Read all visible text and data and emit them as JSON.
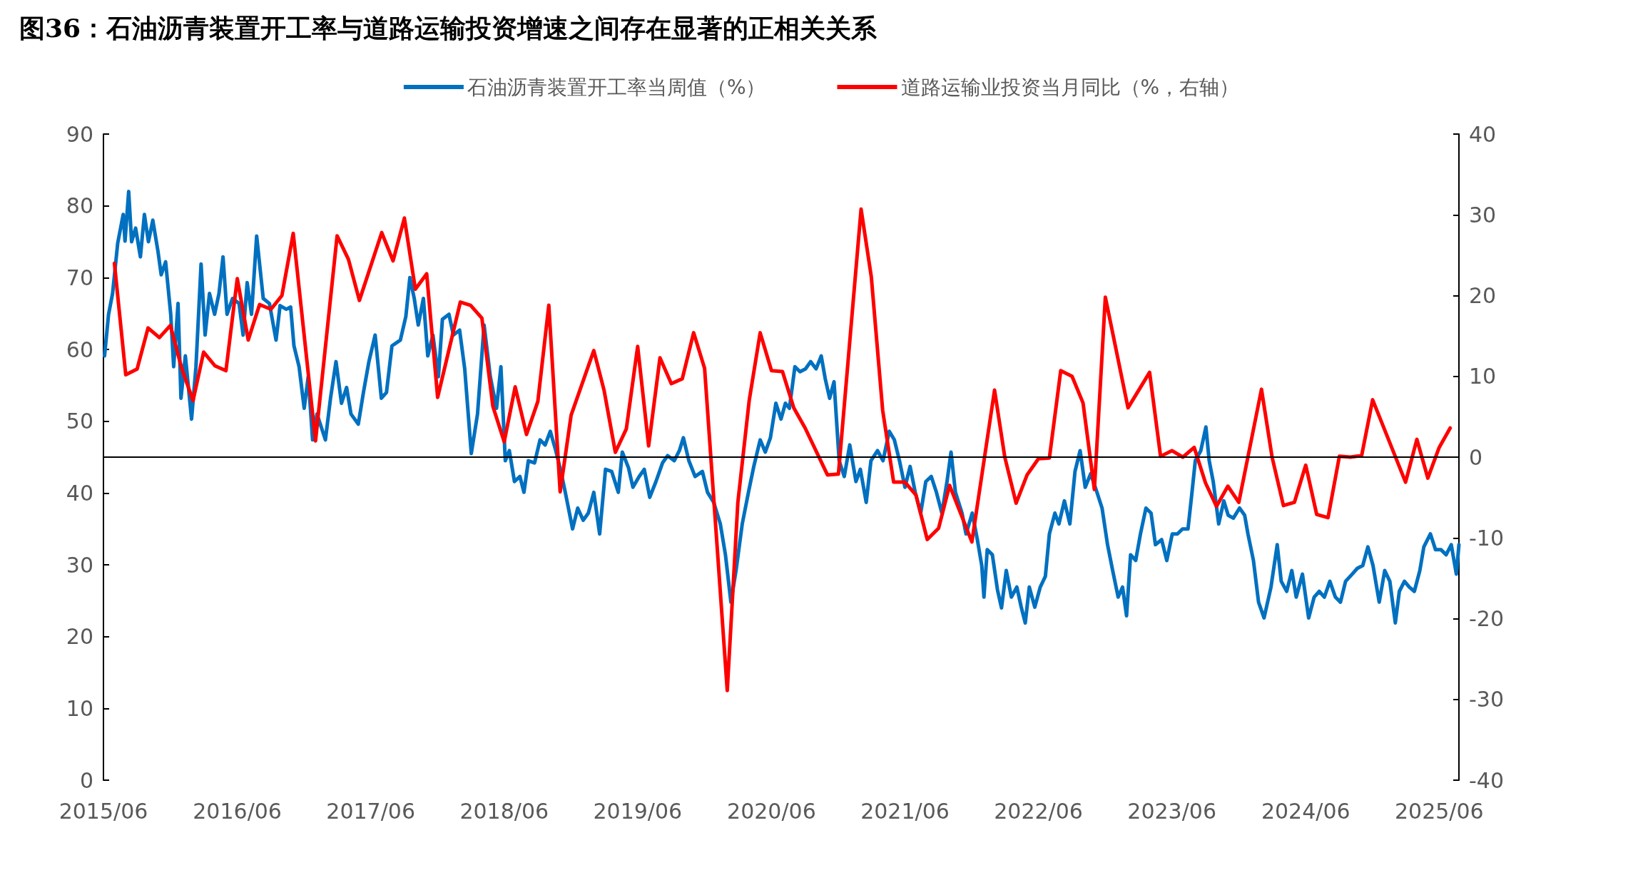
{
  "chart_data": {
    "type": "line",
    "title": "图36：石油沥青装置开工率与道路运输投资增速之间存在显著的正相关关系",
    "xlim": [
      "2015-06-01",
      "2025-07-25"
    ],
    "xticks": [
      {
        "value": "2015-06-01",
        "label": "2015/06"
      },
      {
        "value": "2016-06-01",
        "label": "2016/06"
      },
      {
        "value": "2017-06-01",
        "label": "2017/06"
      },
      {
        "value": "2018-06-01",
        "label": "2018/06"
      },
      {
        "value": "2019-06-01",
        "label": "2019/06"
      },
      {
        "value": "2020-06-01",
        "label": "2020/06"
      },
      {
        "value": "2021-06-01",
        "label": "2021/06"
      },
      {
        "value": "2022-06-01",
        "label": "2022/06"
      },
      {
        "value": "2023-06-01",
        "label": "2023/06"
      },
      {
        "value": "2024-06-01",
        "label": "2024/06"
      },
      {
        "value": "2025-06-01",
        "label": "2025/06"
      }
    ],
    "ylim": [
      0,
      90
    ],
    "yticks": [
      0,
      10,
      20,
      30,
      40,
      50,
      60,
      70,
      80,
      90
    ],
    "y2lim": [
      -40,
      40
    ],
    "y2ticks": [
      -40,
      -30,
      -20,
      -10,
      0,
      10,
      20,
      30,
      40
    ],
    "grid": false,
    "legend": "top",
    "marker": "none",
    "line_style": "solid",
    "ref_lines": [
      {
        "axis": "y2",
        "value": 0,
        "color": "#000000"
      }
    ],
    "series": [
      {
        "name": "石油沥青装置开工率当周值（%）",
        "color": "#0070c0",
        "x": [
          "2015-06-04",
          "2015-06-15",
          "2015-06-26",
          "2015-07-10",
          "2015-07-25",
          "2015-07-30",
          "2015-08-09",
          "2015-08-17",
          "2015-08-28",
          "2015-09-10",
          "2015-09-21",
          "2015-10-02",
          "2015-10-14",
          "2015-10-28",
          "2015-11-06",
          "2015-11-18",
          "2015-12-02",
          "2015-12-10",
          "2015-12-22",
          "2015-12-30",
          "2016-01-11",
          "2016-01-28",
          "2016-02-09",
          "2016-02-23",
          "2016-03-05",
          "2016-03-17",
          "2016-03-31",
          "2016-04-12",
          "2016-04-23",
          "2016-05-04",
          "2016-05-19",
          "2016-06-06",
          "2016-06-17",
          "2016-06-28",
          "2016-07-10",
          "2016-07-24",
          "2016-08-11",
          "2016-08-28",
          "2016-09-15",
          "2016-09-26",
          "2016-10-13",
          "2016-10-25",
          "2016-11-03",
          "2016-11-17",
          "2016-12-01",
          "2016-12-12",
          "2016-12-24",
          "2017-01-05",
          "2017-01-28",
          "2017-02-11",
          "2017-02-26",
          "2017-03-13",
          "2017-03-27",
          "2017-04-08",
          "2017-04-28",
          "2017-05-12",
          "2017-05-27",
          "2017-06-13",
          "2017-06-30",
          "2017-07-14",
          "2017-07-29",
          "2017-08-21",
          "2017-09-05",
          "2017-09-16",
          "2017-09-28",
          "2017-10-09",
          "2017-10-23",
          "2017-11-04",
          "2017-11-18",
          "2017-12-03",
          "2017-12-14",
          "2018-01-01",
          "2018-01-13",
          "2018-01-30",
          "2018-02-13",
          "2018-03-03",
          "2018-03-20",
          "2018-04-07",
          "2018-04-24",
          "2018-05-11",
          "2018-05-23",
          "2018-06-04",
          "2018-06-15",
          "2018-06-29",
          "2018-07-14",
          "2018-07-25",
          "2018-08-06",
          "2018-08-23",
          "2018-09-07",
          "2018-09-21",
          "2018-10-05",
          "2018-10-20",
          "2018-11-03",
          "2018-11-15",
          "2018-12-05",
          "2018-12-19",
          "2019-01-03",
          "2019-01-17",
          "2019-02-01",
          "2019-02-17",
          "2019-03-05",
          "2019-03-22",
          "2019-04-09",
          "2019-04-20",
          "2019-05-07",
          "2019-05-19",
          "2019-06-05",
          "2019-06-19",
          "2019-07-04",
          "2019-07-21",
          "2019-08-08",
          "2019-08-22",
          "2019-09-09",
          "2019-09-23",
          "2019-10-04",
          "2019-10-19",
          "2019-11-05",
          "2019-11-25",
          "2019-12-09",
          "2019-12-26",
          "2020-01-13",
          "2020-01-27",
          "2020-02-11",
          "2020-02-25",
          "2020-03-13",
          "2020-03-30",
          "2020-04-14",
          "2020-05-01",
          "2020-05-15",
          "2020-05-29",
          "2020-06-13",
          "2020-06-27",
          "2020-07-09",
          "2020-07-20",
          "2020-08-04",
          "2020-08-18",
          "2020-09-02",
          "2020-09-16",
          "2020-10-01",
          "2020-10-15",
          "2020-10-26",
          "2020-11-07",
          "2020-11-19",
          "2020-12-03",
          "2020-12-17",
          "2021-01-01",
          "2021-01-18",
          "2021-01-30",
          "2021-02-15",
          "2021-02-28",
          "2021-03-18",
          "2021-04-02",
          "2021-04-19",
          "2021-05-03",
          "2021-05-17",
          "2021-06-01",
          "2021-06-15",
          "2021-06-29",
          "2021-07-14",
          "2021-07-28",
          "2021-08-12",
          "2021-08-26",
          "2021-09-10",
          "2021-09-24",
          "2021-10-05",
          "2021-10-17",
          "2021-11-04",
          "2021-11-15",
          "2021-12-02",
          "2021-12-16",
          "2021-12-28",
          "2022-01-03",
          "2022-01-12",
          "2022-01-26",
          "2022-02-09",
          "2022-02-20",
          "2022-03-05",
          "2022-03-19",
          "2022-04-03",
          "2022-04-15",
          "2022-04-26",
          "2022-05-07",
          "2022-05-22",
          "2022-06-06",
          "2022-06-20",
          "2022-07-01",
          "2022-07-16",
          "2022-07-27",
          "2022-08-11",
          "2022-08-26",
          "2022-09-09",
          "2022-09-23",
          "2022-10-07",
          "2022-10-22",
          "2022-11-08",
          "2022-11-22",
          "2022-12-07",
          "2022-12-21",
          "2023-01-05",
          "2023-01-17",
          "2023-01-28",
          "2023-02-08",
          "2023-02-22",
          "2023-03-07",
          "2023-03-22",
          "2023-04-05",
          "2023-04-17",
          "2023-05-04",
          "2023-05-18",
          "2023-06-02",
          "2023-06-16",
          "2023-06-30",
          "2023-07-15",
          "2023-07-26",
          "2023-08-04",
          "2023-08-19",
          "2023-09-02",
          "2023-09-11",
          "2023-09-22",
          "2023-10-07",
          "2023-10-21",
          "2023-11-02",
          "2023-11-16",
          "2023-12-03",
          "2023-12-17",
          "2023-12-26",
          "2024-01-10",
          "2024-01-24",
          "2024-02-08",
          "2024-02-27",
          "2024-03-15",
          "2024-03-26",
          "2024-04-10",
          "2024-04-24",
          "2024-05-06",
          "2024-05-23",
          "2024-06-09",
          "2024-06-24",
          "2024-07-08",
          "2024-07-22",
          "2024-08-06",
          "2024-08-21",
          "2024-09-04",
          "2024-09-18",
          "2024-10-06",
          "2024-10-20",
          "2024-11-04",
          "2024-11-18",
          "2024-12-02",
          "2024-12-19",
          "2025-01-03",
          "2025-01-17",
          "2025-02-01",
          "2025-02-12",
          "2025-02-26",
          "2025-03-11",
          "2025-03-25",
          "2025-04-09",
          "2025-04-20",
          "2025-05-08",
          "2025-05-22",
          "2025-06-06",
          "2025-06-20",
          "2025-07-04",
          "2025-07-18",
          "2025-07-25"
        ],
        "values": [
          59.1,
          64.9,
          67.8,
          74.8,
          78.8,
          75.1,
          82,
          75,
          76.9,
          72.9,
          78.8,
          75,
          78,
          73.7,
          70.4,
          72.2,
          64.9,
          57.6,
          66.4,
          53.2,
          59.1,
          50.3,
          57.6,
          71.9,
          62,
          67.8,
          64.9,
          67.8,
          72.9,
          64.9,
          67.1,
          66.4,
          62,
          69.3,
          64.9,
          75.8,
          67.1,
          66.4,
          61.3,
          66.1,
          65.6,
          65.9,
          60.5,
          57.6,
          51.8,
          56.2,
          47.4,
          51,
          47.4,
          53.2,
          58.3,
          52.5,
          54.7,
          51,
          49.6,
          54,
          58.3,
          62,
          53.2,
          54,
          60.5,
          61.3,
          64.6,
          70,
          67.1,
          63.4,
          67.1,
          59.1,
          62,
          56.2,
          64.2,
          64.9,
          62,
          62.7,
          57.3,
          45.5,
          51,
          63.4,
          56.2,
          51.8,
          57.6,
          44.5,
          45.9,
          41.6,
          42.3,
          40.1,
          44.5,
          44.2,
          47.4,
          46.7,
          48.6,
          45.9,
          43,
          40.1,
          35,
          37.9,
          36.2,
          37.2,
          40.1,
          34.3,
          43.3,
          43,
          40.1,
          45.7,
          43.5,
          40.8,
          42.3,
          43.3,
          39.4,
          41.6,
          44.2,
          45.2,
          44.5,
          45.9,
          47.7,
          44.5,
          42.3,
          43,
          40.1,
          38.7,
          35.7,
          31.4,
          24.8,
          29.2,
          35.7,
          40.1,
          43.8,
          47.4,
          45.7,
          47.7,
          52.5,
          50.3,
          52.5,
          51.8,
          57.6,
          56.9,
          57.3,
          58.3,
          57.3,
          59.1,
          55.9,
          53.2,
          55.5,
          44.5,
          42.3,
          46.7,
          41.6,
          43.3,
          38.7,
          44.5,
          45.9,
          44.5,
          48.6,
          47.4,
          44.5,
          40.8,
          43.7,
          40.1,
          37.2,
          41.6,
          42.3,
          40.1,
          37.2,
          41.6,
          45.7,
          40.1,
          37.2,
          34.3,
          37.2,
          33.5,
          29.9,
          25.5,
          32.1,
          31.4,
          26.5,
          24,
          29.2,
          25.5,
          26.9,
          24.1,
          21.9,
          26.9,
          24.1,
          26.9,
          28.4,
          34.3,
          37.2,
          35.7,
          38.9,
          35.7,
          43,
          45.9,
          40.8,
          42.7,
          40.1,
          37.9,
          32.8,
          29.2,
          25.5,
          26.9,
          22.9,
          31.4,
          30.6,
          34.3,
          37.9,
          37.2,
          32.8,
          33.5,
          30.6,
          34.3,
          34.3,
          35,
          35,
          40.1,
          44.5,
          45.9,
          49.2,
          44.5,
          41.6,
          35.7,
          38.9,
          36.9,
          36.5,
          37.9,
          36.9,
          34.3,
          30.6,
          24.8,
          22.6,
          26.9,
          32.8,
          27.7,
          26.3,
          29.2,
          25.5,
          28.7,
          22.6,
          25.5,
          26.3,
          25.5,
          27.7,
          25.5,
          24.8,
          27.7,
          28.7,
          29.5,
          29.9,
          32.5,
          29.9,
          24.8,
          29.2,
          27.7,
          21.9,
          26.3,
          27.7,
          26.9,
          26.3,
          29.2,
          32.5,
          34.3,
          32.1,
          32.1,
          31.4,
          32.8,
          28.7,
          32.8
        ]
      },
      {
        "name": "道路运输业投资当月同比（%，右轴）",
        "color": "#ff0000",
        "axis": "y2",
        "x": [
          "2015-07",
          "2015-08",
          "2015-09",
          "2015-10",
          "2015-11",
          "2015-12",
          "2016-01",
          "2016-02",
          "2016-03",
          "2016-04",
          "2016-05",
          "2016-06",
          "2016-07",
          "2016-08",
          "2016-09",
          "2016-10",
          "2016-11",
          "2017-01",
          "2017-03",
          "2017-04",
          "2017-05",
          "2017-07",
          "2017-08",
          "2017-09",
          "2017-10",
          "2017-11",
          "2017-12",
          "2018-02",
          "2018-03",
          "2018-04",
          "2018-05",
          "2018-06",
          "2018-07",
          "2018-08",
          "2018-09",
          "2018-10",
          "2018-11",
          "2018-12",
          "2019-02",
          "2019-03",
          "2019-04",
          "2019-05",
          "2019-06",
          "2019-07",
          "2019-08",
          "2019-09",
          "2019-10",
          "2019-11",
          "2019-12",
          "2020-02",
          "2020-03",
          "2020-04",
          "2020-05",
          "2020-06",
          "2020-07",
          "2020-08",
          "2020-09",
          "2020-11",
          "2020-12",
          "2021-02",
          "2021-03",
          "2021-04",
          "2021-05",
          "2021-06",
          "2021-07",
          "2021-08",
          "2021-09",
          "2021-10",
          "2021-12",
          "2022-02",
          "2022-03",
          "2022-04",
          "2022-05",
          "2022-06",
          "2022-07",
          "2022-08",
          "2022-09",
          "2022-10",
          "2022-11",
          "2022-12",
          "2023-02",
          "2023-04",
          "2023-05",
          "2023-06",
          "2023-07",
          "2023-08",
          "2023-09",
          "2023-10",
          "2023-11",
          "2023-12",
          "2024-02",
          "2024-03",
          "2024-04",
          "2024-05",
          "2024-06",
          "2024-07",
          "2024-08",
          "2024-09",
          "2024-10",
          "2024-11",
          "2024-12",
          "2025-03",
          "2025-04",
          "2025-05",
          "2025-06",
          "2025-07"
        ],
        "values": [
          24,
          10.2,
          10.9,
          16,
          14.8,
          16.3,
          11,
          7,
          13,
          11.3,
          10.7,
          22.1,
          14.5,
          18.9,
          18.3,
          20,
          27.7,
          2,
          27.4,
          24.5,
          19.4,
          27.8,
          24.3,
          29.6,
          20.8,
          22.7,
          7.4,
          19.2,
          18.8,
          17.2,
          6.3,
          1.9,
          8.7,
          2.8,
          6.9,
          18.8,
          -4.3,
          5.2,
          13.2,
          8.3,
          0.6,
          3.5,
          13.7,
          1.4,
          12.3,
          9.1,
          9.7,
          15.4,
          11,
          -28.9,
          -5.6,
          7,
          15.4,
          10.7,
          10.6,
          6.1,
          3.6,
          -2.2,
          -2.1,
          30.7,
          22.3,
          5.8,
          -3.1,
          -3.1,
          -4.7,
          -10.2,
          -8.8,
          -3.5,
          -10.5,
          8.3,
          0,
          -5.7,
          -2.2,
          -0.2,
          -0.1,
          10.7,
          10,
          6.7,
          -4,
          19.8,
          6.1,
          10.5,
          0.1,
          0.8,
          0,
          1.2,
          -3.2,
          -6.1,
          -3.6,
          -5.6,
          8.4,
          0,
          -6,
          -5.6,
          -1,
          -7.1,
          -7.5,
          0.1,
          0,
          0.2,
          7.1,
          -3.1,
          2.2,
          -2.6,
          1.2,
          3.6
        ]
      }
    ]
  }
}
